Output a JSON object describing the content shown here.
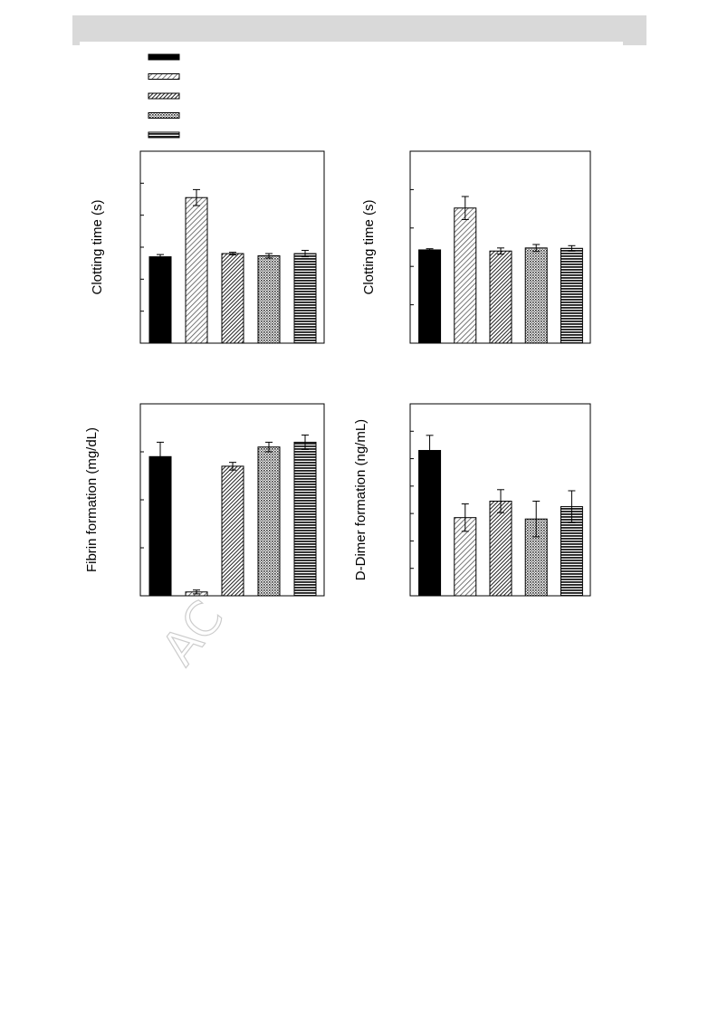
{
  "legend": {
    "entries": [
      {
        "pattern": "solid"
      },
      {
        "pattern": "diag-light"
      },
      {
        "pattern": "diag-dark"
      },
      {
        "pattern": "dots"
      },
      {
        "pattern": "horizontal"
      }
    ]
  },
  "watermark": "AC",
  "colors": {
    "header": "#d9d9d9",
    "bar": "#000000",
    "watermark": "#cccccc"
  },
  "chart_data": [
    {
      "type": "bar",
      "ylabel": "Clotting time (s)",
      "ylim": [
        0,
        6
      ],
      "yticks": [
        0,
        1,
        2,
        3,
        4,
        5,
        6
      ],
      "patterns": [
        "solid",
        "diag-light",
        "diag-dark",
        "dots",
        "horizontal"
      ],
      "values": [
        2.7,
        4.55,
        2.8,
        2.73,
        2.8
      ],
      "errors": [
        0.07,
        0.25,
        0.04,
        0.07,
        0.1
      ]
    },
    {
      "type": "bar",
      "ylabel": "Clotting time (s)",
      "ylim": [
        0,
        5
      ],
      "yticks": [
        0,
        1,
        2,
        3,
        4,
        5
      ],
      "patterns": [
        "solid",
        "diag-light",
        "diag-dark",
        "dots",
        "horizontal"
      ],
      "values": [
        2.43,
        3.52,
        2.4,
        2.48,
        2.47
      ],
      "errors": [
        0.03,
        0.3,
        0.08,
        0.09,
        0.07
      ]
    },
    {
      "type": "bar",
      "ylabel": "Fibrin formation (mg/dL)",
      "ylim": [
        0,
        4
      ],
      "yticks": [
        0,
        1,
        2,
        3,
        4
      ],
      "patterns": [
        "solid",
        "diag-light",
        "diag-dark",
        "dots",
        "horizontal"
      ],
      "values": [
        2.9,
        0.08,
        2.7,
        3.1,
        3.2
      ],
      "errors": [
        0.3,
        0.04,
        0.08,
        0.1,
        0.15
      ]
    },
    {
      "type": "bar",
      "ylabel": "D-Dimer formation (ng/mL)",
      "ylim": [
        0,
        7
      ],
      "yticks": [
        0,
        1,
        2,
        3,
        4,
        5,
        6,
        7
      ],
      "patterns": [
        "solid",
        "diag-light",
        "diag-dark",
        "dots",
        "horizontal"
      ],
      "values": [
        5.3,
        2.85,
        3.45,
        2.8,
        3.25
      ],
      "errors": [
        0.55,
        0.5,
        0.42,
        0.65,
        0.58
      ]
    }
  ]
}
